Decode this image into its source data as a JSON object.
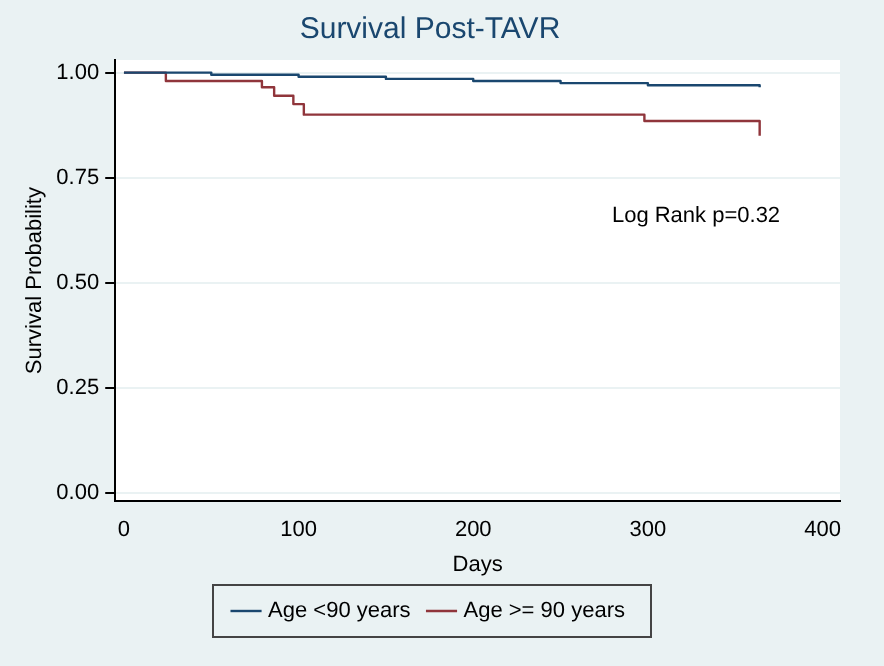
{
  "chart_data": {
    "type": "step",
    "title": "Survival Post-TAVR",
    "xlabel": "Days",
    "ylabel": "Survival Probability",
    "series": [
      {
        "name": "Age <90 years",
        "color": "#1a476f",
        "x": [
          0,
          50,
          100,
          150,
          200,
          250,
          300,
          364
        ],
        "values": [
          1,
          0.995,
          0.99,
          0.985,
          0.98,
          0.975,
          0.97,
          0.965
        ]
      },
      {
        "name": "Age >= 90 years",
        "color": "#90353b",
        "x": [
          0,
          24,
          79,
          86,
          97,
          103,
          298,
          364
        ],
        "values": [
          1,
          0.98,
          0.965,
          0.945,
          0.925,
          0.9,
          0.885,
          0.85
        ]
      }
    ],
    "xlim": [
      -5,
      410
    ],
    "xticks": [
      0,
      100,
      200,
      300,
      400
    ],
    "ylim": [
      -0.02,
      1.03
    ],
    "yticks": [
      {
        "value": 0,
        "label": "0.00"
      },
      {
        "value": 0.25,
        "label": "0.25"
      },
      {
        "value": 0.5,
        "label": "0.50"
      },
      {
        "value": 0.75,
        "label": "0.75"
      },
      {
        "value": 1,
        "label": "1.00"
      }
    ],
    "grid": "y",
    "legend": "bottom",
    "marker": "none",
    "line_style": "solid",
    "annotations": [
      "Log Rank p=0.32"
    ]
  }
}
